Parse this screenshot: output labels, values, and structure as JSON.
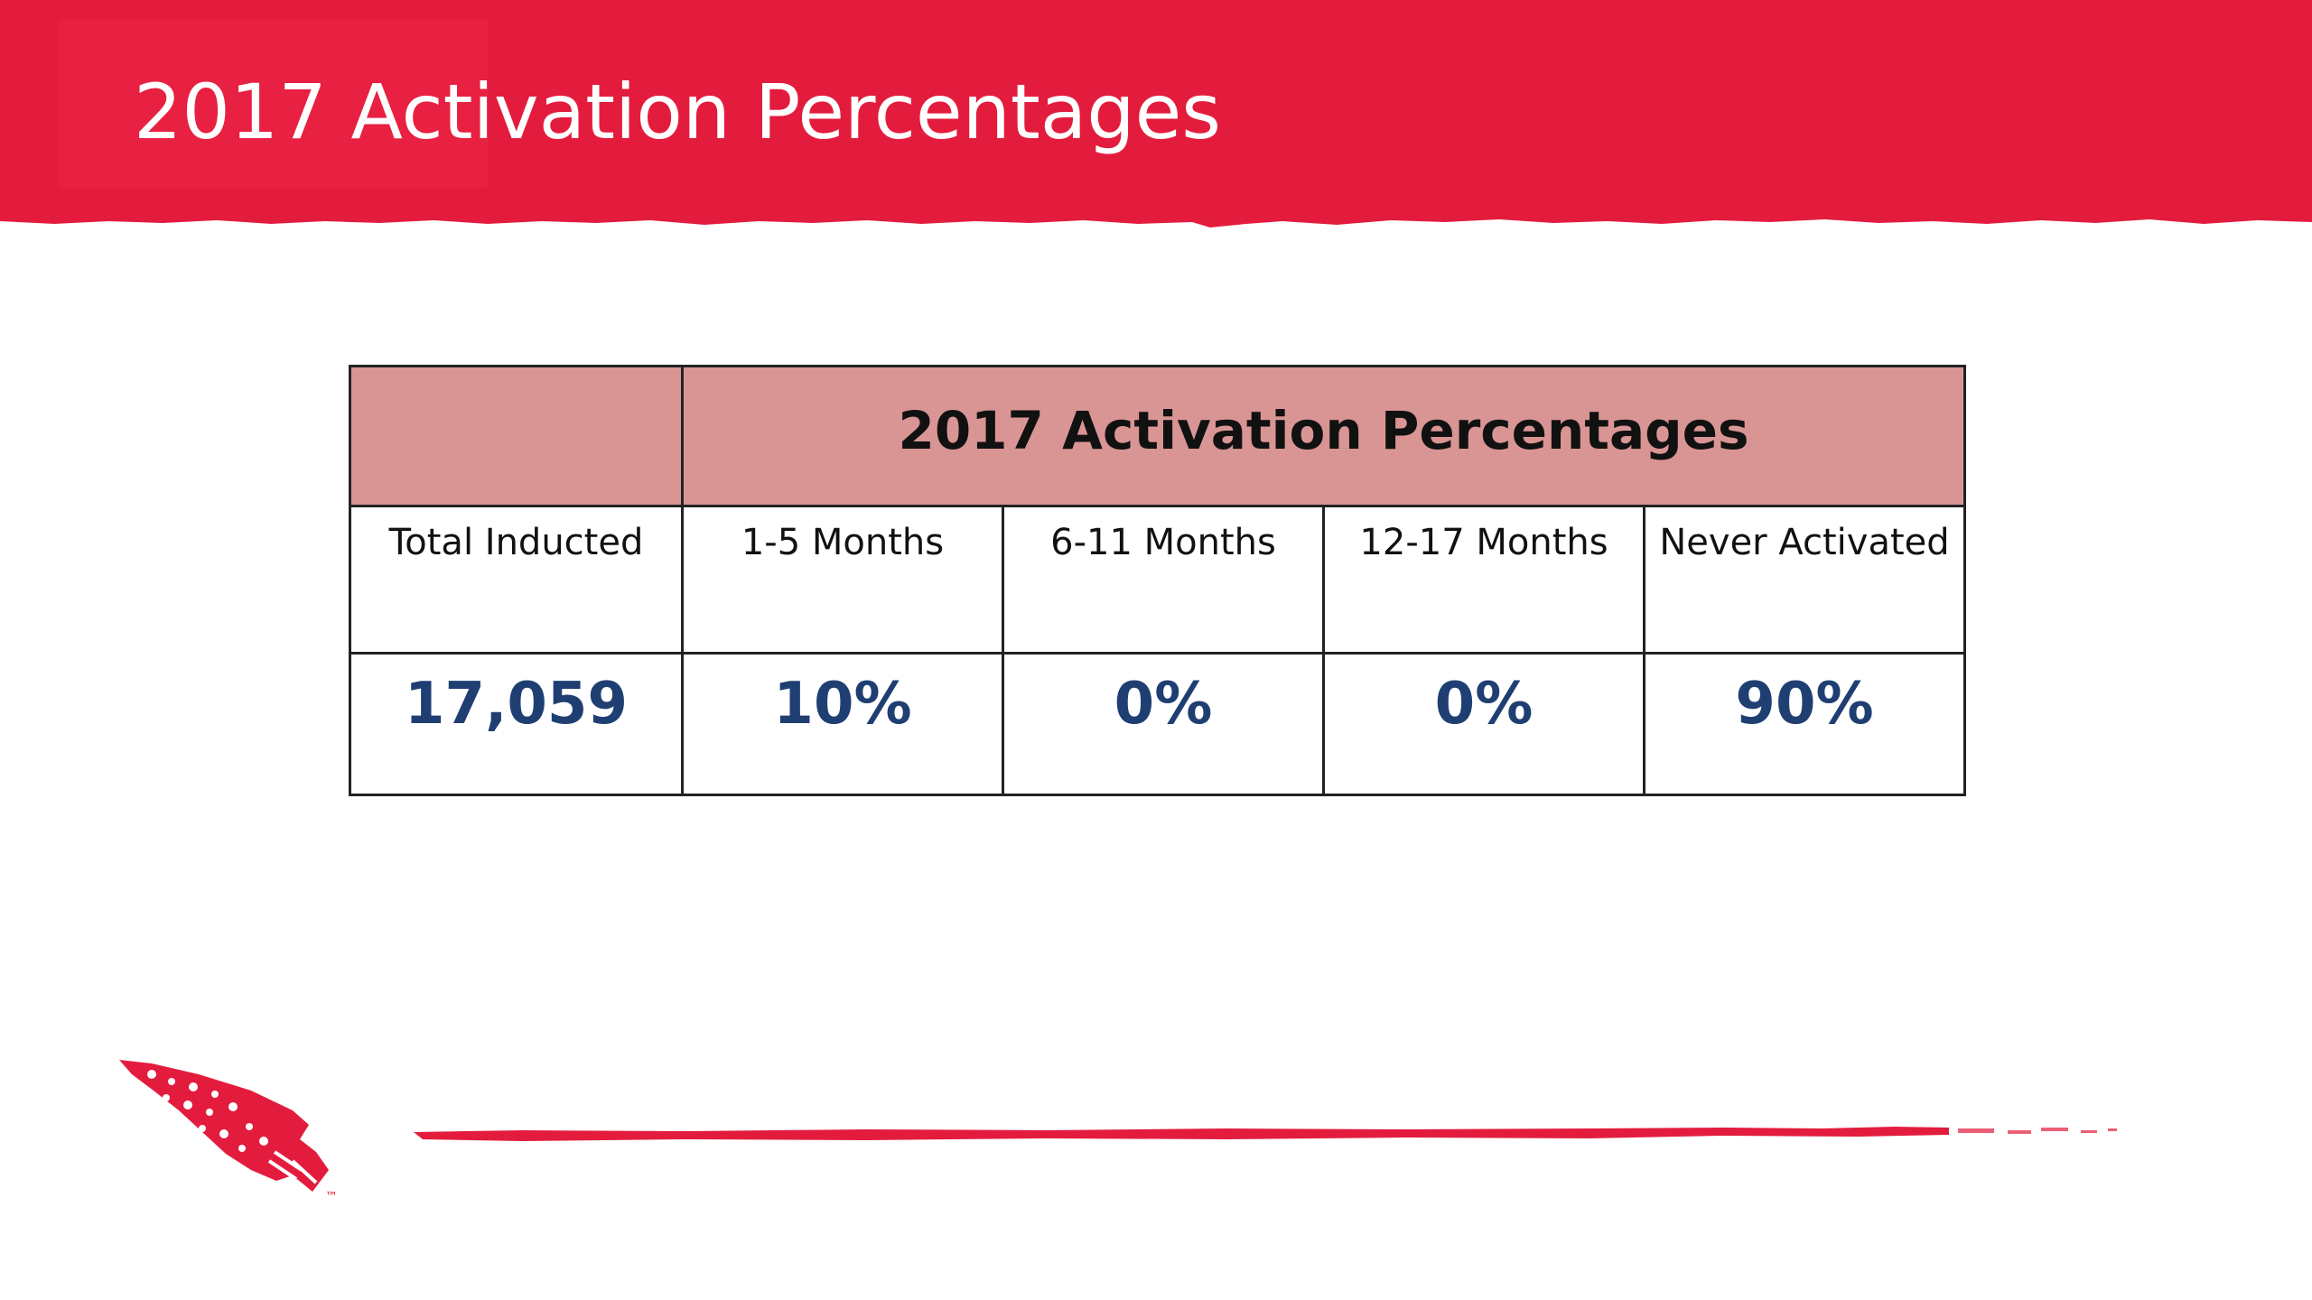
{
  "slide": {
    "title": "2017 Activation Percentages",
    "accent_color": "#e31c3d",
    "header_fill_color": "#d99594",
    "value_color": "#1f3f73"
  },
  "table": {
    "header": "2017 Activation Percentages",
    "columns": [
      "Total Inducted",
      "1-5 Months",
      "6-11 Months",
      "12-17 Months",
      "Never Activated"
    ],
    "values": [
      "17,059",
      "10%",
      "0%",
      "0%",
      "90%"
    ]
  },
  "logo": {
    "icon": "arrowhead-logo-icon",
    "trademark": "™"
  }
}
